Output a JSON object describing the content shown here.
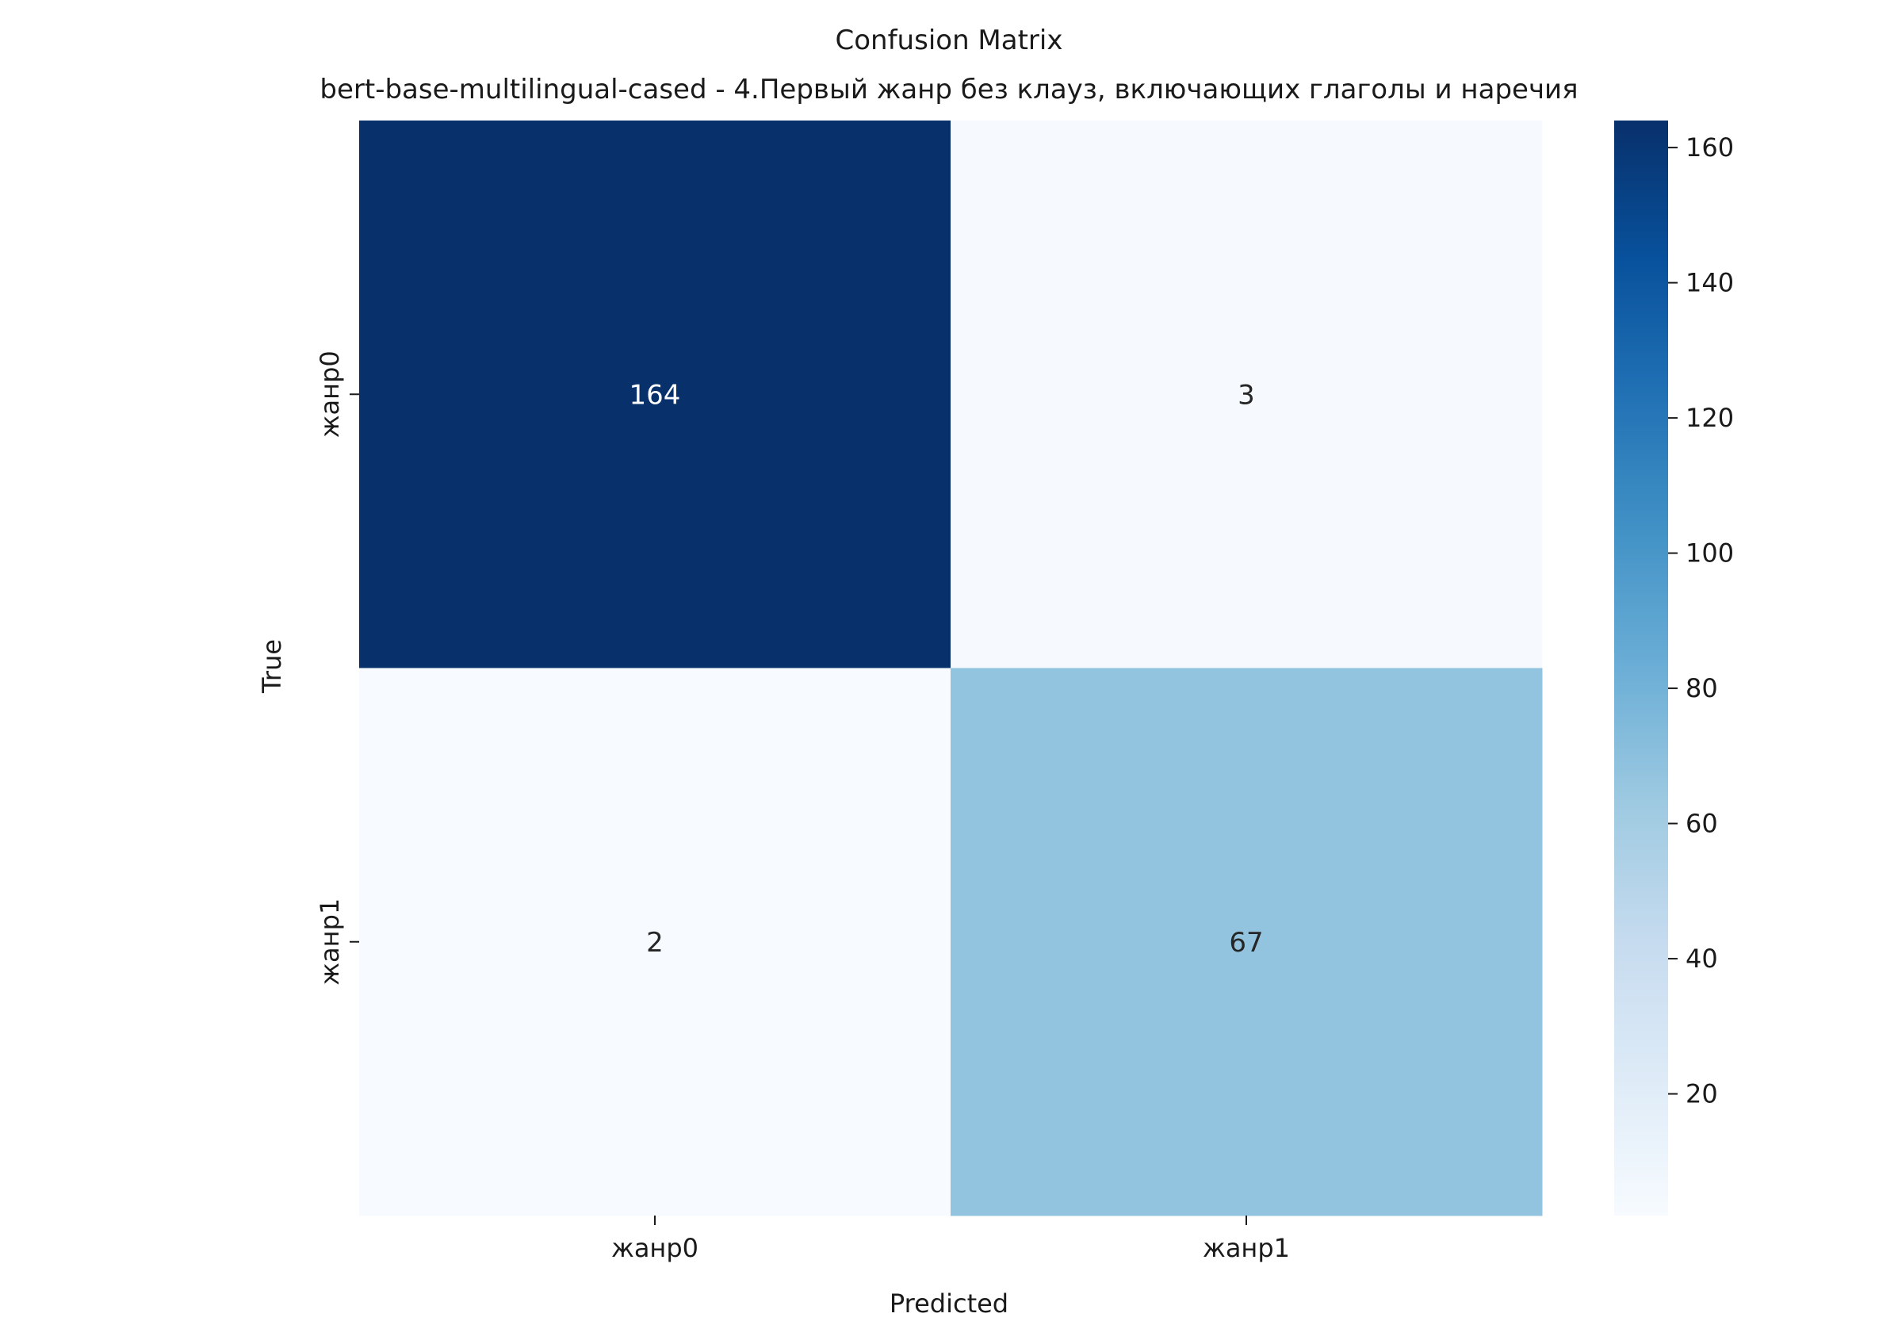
{
  "chart_data": {
    "type": "heatmap",
    "title": "Confusion Matrix",
    "subtitle": "bert-base-multilingual-cased - 4.Первый жанр без клауз, включающих глаголы и наречия",
    "xlabel": "Predicted",
    "ylabel": "True",
    "x_categories": [
      "жанр0",
      "жанр1"
    ],
    "y_categories": [
      "жанр0",
      "жанр1"
    ],
    "values": [
      [
        164,
        3
      ],
      [
        2,
        67
      ]
    ],
    "colormap": "Blues",
    "colorbar": {
      "min": 2,
      "max": 164,
      "ticks": [
        20,
        40,
        60,
        80,
        100,
        120,
        140,
        160
      ]
    },
    "annotation_colors": {
      "dark_cell": "#ffffff",
      "light_cell": "#262626"
    }
  }
}
